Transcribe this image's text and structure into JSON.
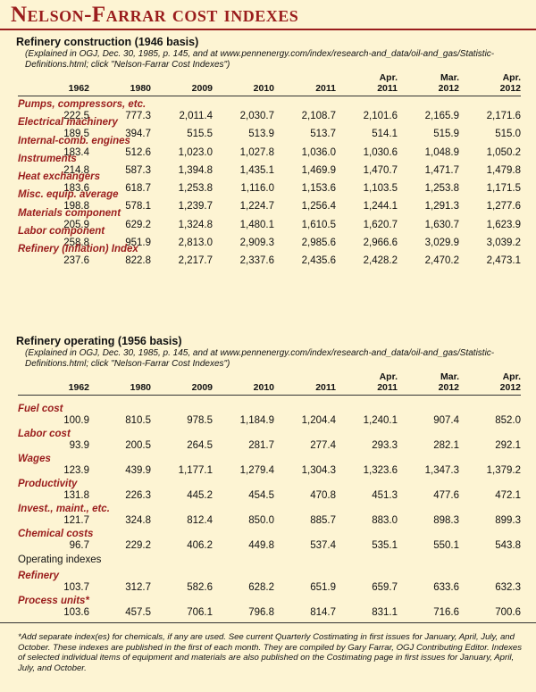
{
  "title": "Nelson-Farrar cost indexes",
  "sections": [
    {
      "heading": "Refinery construction (1946 basis)",
      "note": "(Explained in OGJ, Dec. 30, 1985, p. 145, and at www.pennenergy.com/index/research-and_data/oil-and_gas/Statistic-Definitions.html; click \"Nelson-Farrar Cost Indexes\")",
      "columns": [
        "1962",
        "1980",
        "2009",
        "2010",
        "2011",
        "Apr. 2011",
        "Mar. 2012",
        "Apr. 2012"
      ],
      "rows": [
        {
          "label": "Pumps, compressors, etc.",
          "values": [
            "222.5",
            "777.3",
            "2,011.4",
            "2,030.7",
            "2,108.7",
            "2,101.6",
            "2,165.9",
            "2,171.6"
          ]
        },
        {
          "label": "Electrical machinery",
          "values": [
            "189.5",
            "394.7",
            "515.5",
            "513.9",
            "513.7",
            "514.1",
            "515.9",
            "515.0"
          ]
        },
        {
          "label": "Internal-comb. engines",
          "values": [
            "183.4",
            "512.6",
            "1,023.0",
            "1,027.8",
            "1,036.0",
            "1,030.6",
            "1,048.9",
            "1,050.2"
          ]
        },
        {
          "label": "Instruments",
          "values": [
            "214.8",
            "587.3",
            "1,394.8",
            "1,435.1",
            "1,469.9",
            "1,470.7",
            "1,471.7",
            "1,479.8"
          ]
        },
        {
          "label": "Heat exchangers",
          "values": [
            "183.6",
            "618.7",
            "1,253.8",
            "1,116.0",
            "1,153.6",
            "1,103.5",
            "1,253.8",
            "1,171.5"
          ]
        },
        {
          "label": "Misc. equip. average",
          "values": [
            "198.8",
            "578.1",
            "1,239.7",
            "1,224.7",
            "1,256.4",
            "1,244.1",
            "1,291.3",
            "1,277.6"
          ]
        },
        {
          "label": "Materials component",
          "values": [
            "205.9",
            "629.2",
            "1,324.8",
            "1,480.1",
            "1,610.5",
            "1,620.7",
            "1,630.7",
            "1,623.9"
          ]
        },
        {
          "label": "Labor component",
          "values": [
            "258.8",
            "951.9",
            "2,813.0",
            "2,909.3",
            "2,985.6",
            "2,966.6",
            "3,029.9",
            "3,039.2"
          ]
        },
        {
          "label": "Refinery (Inflation) Index",
          "values": [
            "237.6",
            "822.8",
            "2,217.7",
            "2,337.6",
            "2,435.6",
            "2,428.2",
            "2,470.2",
            "2,473.1"
          ]
        }
      ]
    },
    {
      "heading": "Refinery operating (1956 basis)",
      "note": "(Explained in OGJ, Dec. 30, 1985, p. 145, and at www.pennenergy.com/index/research-and_data/oil-and_gas/Statistic-Definitions.html; click \"Nelson-Farrar Cost Indexes\")",
      "columns": [
        "1962",
        "1980",
        "2009",
        "2010",
        "2011",
        "Apr. 2011",
        "Mar. 2012",
        "Apr. 2012"
      ],
      "rows": [
        {
          "label": "Fuel cost",
          "values": [
            "100.9",
            "810.5",
            "978.5",
            "1,184.9",
            "1,204.4",
            "1,240.1",
            "907.4",
            "852.0"
          ]
        },
        {
          "label": "Labor cost",
          "values": [
            "93.9",
            "200.5",
            "264.5",
            "281.7",
            "277.4",
            "293.3",
            "282.1",
            "292.1"
          ]
        },
        {
          "label": "Wages",
          "values": [
            "123.9",
            "439.9",
            "1,177.1",
            "1,279.4",
            "1,304.3",
            "1,323.6",
            "1,347.3",
            "1,379.2"
          ]
        },
        {
          "label": "Productivity",
          "values": [
            "131.8",
            "226.3",
            "445.2",
            "454.5",
            "470.8",
            "451.3",
            "477.6",
            "472.1"
          ]
        },
        {
          "label": "Invest., maint., etc.",
          "values": [
            "121.7",
            "324.8",
            "812.4",
            "850.0",
            "885.7",
            "883.0",
            "898.3",
            "899.3"
          ]
        },
        {
          "label": "Chemical costs",
          "values": [
            "96.7",
            "229.2",
            "406.2",
            "449.8",
            "537.4",
            "535.1",
            "550.1",
            "543.8"
          ]
        }
      ],
      "subheading": "Operating indexes",
      "subrows": [
        {
          "label": "Refinery",
          "values": [
            "103.7",
            "312.7",
            "582.6",
            "628.2",
            "651.9",
            "659.7",
            "633.6",
            "632.3"
          ]
        },
        {
          "label": "Process units*",
          "values": [
            "103.6",
            "457.5",
            "706.1",
            "796.8",
            "814.7",
            "831.1",
            "716.6",
            "700.6"
          ]
        }
      ]
    }
  ],
  "footnote": "*Add separate index(es) for chemicals, if any are used. See current Quarterly Costimating in first issues for January, April, July, and October. These indexes are published in the first of each month. They are compiled by Gary Farrar, OGJ Contributing Editor. Indexes of selected individual items of equipment and materials are also published on the Costimating page in first issues for January, April, July, and October."
}
